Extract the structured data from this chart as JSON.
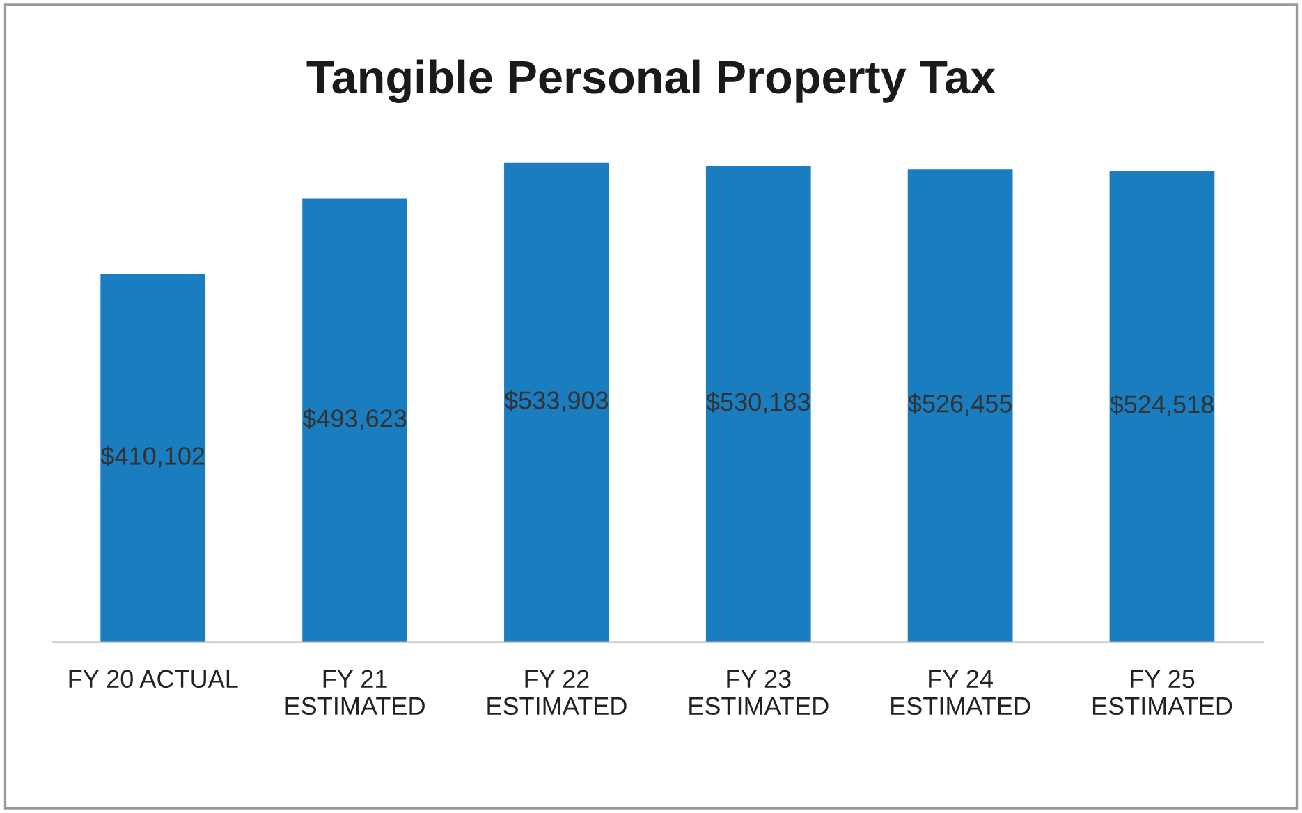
{
  "chart_data": {
    "type": "bar",
    "title": "Tangible Personal Property Tax",
    "categories": [
      "FY 20 ACTUAL",
      "FY 21\nESTIMATED",
      "FY 22\nESTIMATED",
      "FY 23\nESTIMATED",
      "FY 24\nESTIMATED",
      "FY 25\nESTIMATED"
    ],
    "values": [
      410102,
      493623,
      533903,
      530183,
      526455,
      524518
    ],
    "value_labels": [
      "$410,102",
      "$493,623",
      "$533,903",
      "$530,183",
      "$526,455",
      "$524,518"
    ],
    "color": "#1a7dc0",
    "grid": false
  }
}
